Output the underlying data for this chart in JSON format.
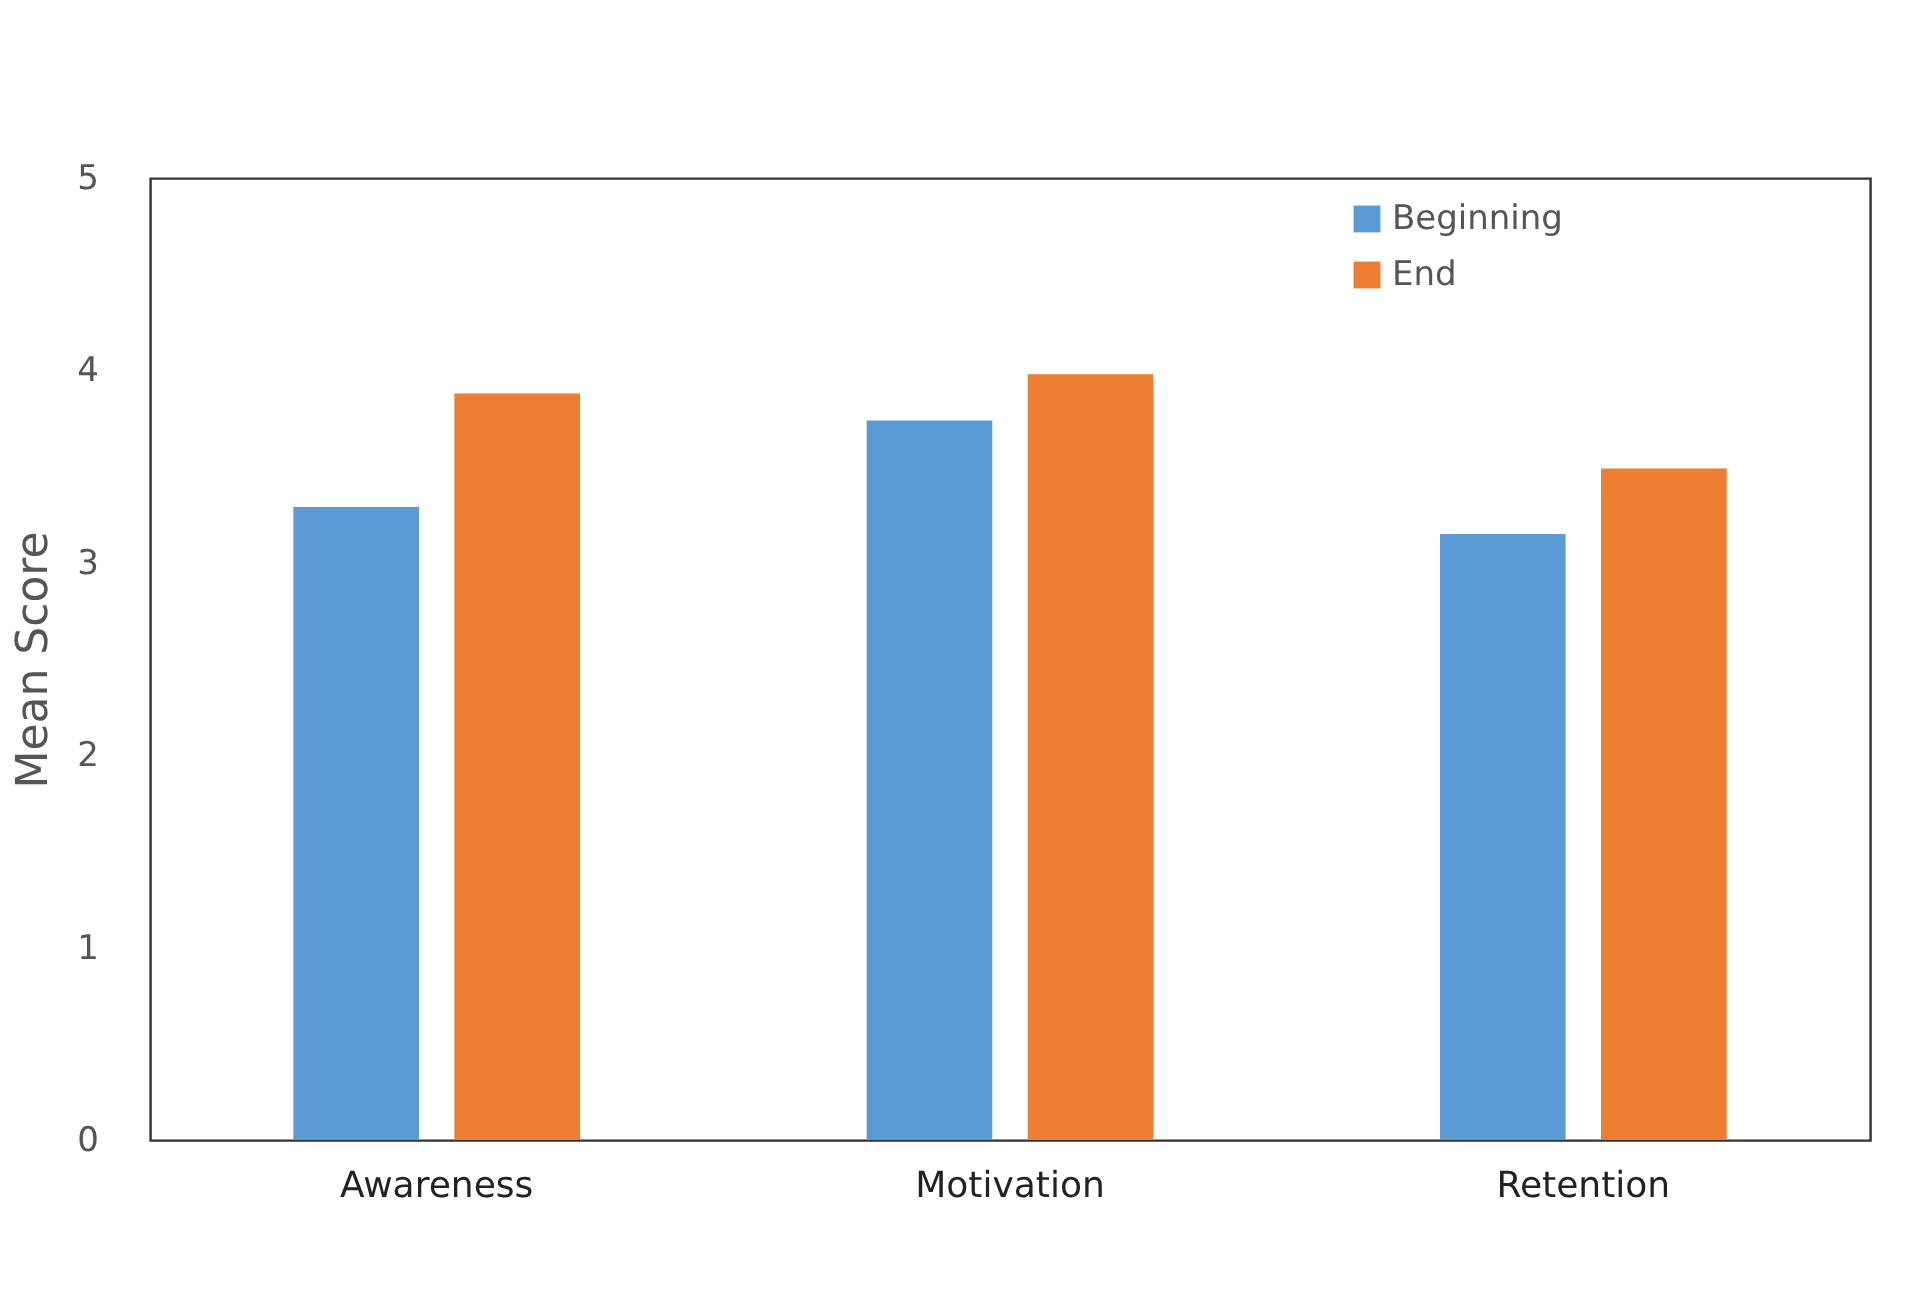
{
  "chart_data": {
    "type": "bar",
    "ylabel": "Mean Score",
    "categories": [
      "Awareness",
      "Motivation",
      "Retention"
    ],
    "series": [
      {
        "name": "Beginning",
        "color": "#5b9bd5",
        "values": [
          3.29,
          3.74,
          3.15
        ]
      },
      {
        "name": "End",
        "color": "#ed7d31",
        "values": [
          3.88,
          3.98,
          3.49
        ]
      }
    ],
    "ylim": [
      0,
      5
    ],
    "yticks": [
      0,
      1,
      2,
      3,
      4,
      5
    ],
    "grid": false,
    "legend": "top right"
  }
}
